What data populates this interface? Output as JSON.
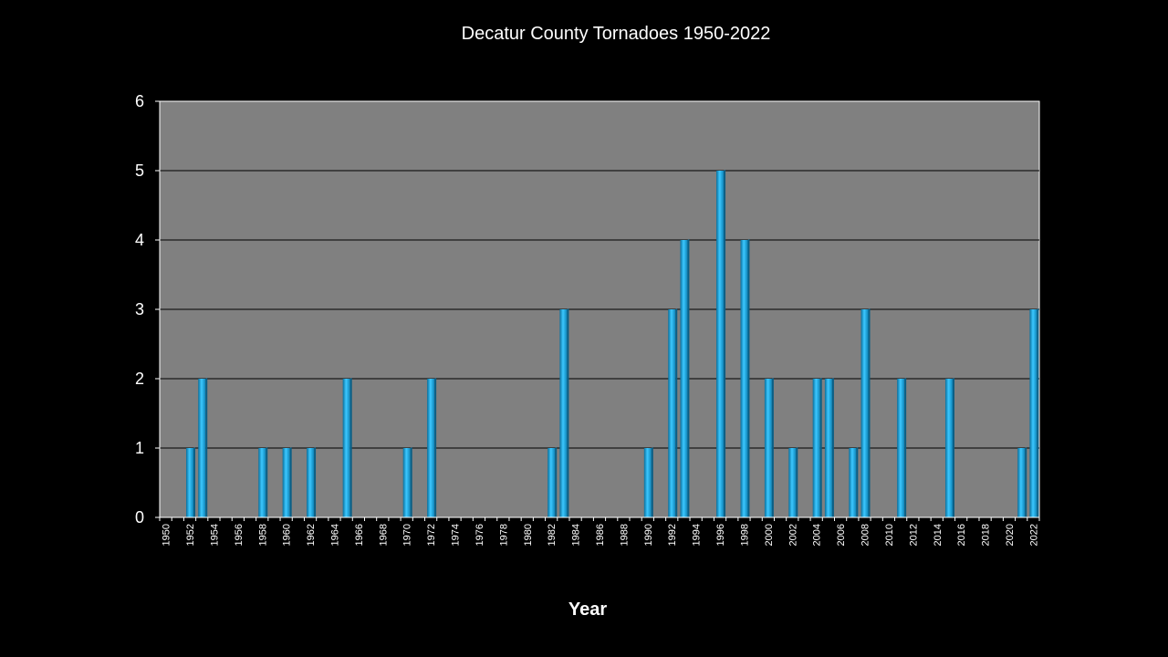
{
  "colors": {
    "background": "#000000",
    "plot_area": "#808080",
    "bar": "#1fb2ee",
    "gridline": "#000000",
    "text": "#ffffff"
  },
  "chart_data": {
    "type": "bar",
    "title": "Decatur County Tornadoes 1950-2022",
    "xlabel": "Year",
    "ylabel": "",
    "ylim": [
      0,
      6
    ],
    "yticks": [
      0,
      1,
      2,
      3,
      4,
      5,
      6
    ],
    "grid": true,
    "legend": "none",
    "categories": [
      1950,
      1951,
      1952,
      1953,
      1954,
      1955,
      1956,
      1957,
      1958,
      1959,
      1960,
      1961,
      1962,
      1963,
      1964,
      1965,
      1966,
      1967,
      1968,
      1969,
      1970,
      1971,
      1972,
      1973,
      1974,
      1975,
      1976,
      1977,
      1978,
      1979,
      1980,
      1981,
      1982,
      1983,
      1984,
      1985,
      1986,
      1987,
      1988,
      1989,
      1990,
      1991,
      1992,
      1993,
      1994,
      1995,
      1996,
      1997,
      1998,
      1999,
      2000,
      2001,
      2002,
      2003,
      2004,
      2005,
      2006,
      2007,
      2008,
      2009,
      2010,
      2011,
      2012,
      2013,
      2014,
      2015,
      2016,
      2017,
      2018,
      2019,
      2020,
      2021,
      2022
    ],
    "values": [
      0,
      0,
      1,
      2,
      0,
      0,
      0,
      0,
      1,
      0,
      1,
      0,
      1,
      0,
      0,
      2,
      0,
      0,
      0,
      0,
      1,
      0,
      2,
      0,
      0,
      0,
      0,
      0,
      0,
      0,
      0,
      0,
      1,
      3,
      0,
      0,
      0,
      0,
      0,
      0,
      1,
      0,
      3,
      4,
      0,
      0,
      5,
      0,
      4,
      0,
      2,
      0,
      1,
      0,
      2,
      2,
      0,
      1,
      3,
      0,
      0,
      2,
      0,
      0,
      0,
      2,
      0,
      0,
      0,
      0,
      0,
      1,
      3
    ],
    "xtick_labels": [
      "1950",
      "1952",
      "1954",
      "1956",
      "1958",
      "1960",
      "1962",
      "1964",
      "1966",
      "1968",
      "1970",
      "1972",
      "1974",
      "1976",
      "1978",
      "1980",
      "1982",
      "1984",
      "1986",
      "1988",
      "1990",
      "1992",
      "1994",
      "1996",
      "1998",
      "2000",
      "2002",
      "2004",
      "2006",
      "2008",
      "2010",
      "2012",
      "2014",
      "2016",
      "2018",
      "2020",
      "2022"
    ]
  }
}
